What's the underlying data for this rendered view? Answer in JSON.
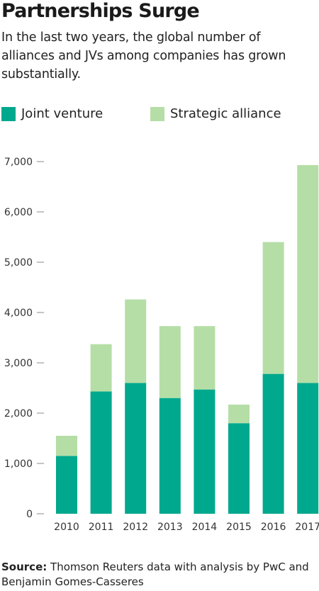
{
  "title": "Partnerships Surge",
  "subtitle": "In the last two years, the global number of alliances and JVs among companies has grown substantially.",
  "legend": {
    "joint_venture": "Joint venture",
    "strategic_alliance": "Strategic alliance"
  },
  "colors": {
    "joint_venture": "#00a88e",
    "strategic_alliance": "#b5dea6"
  },
  "source": {
    "label": "Source:",
    "text": "Thomson Reuters data with analysis by PwC and Benjamin Gomes-Casseres"
  },
  "chart_data": {
    "type": "bar",
    "stacked": true,
    "categories": [
      "2010",
      "2011",
      "2012",
      "2013",
      "2014",
      "2015",
      "2016",
      "2017"
    ],
    "series": [
      {
        "name": "Joint venture",
        "values": [
          1150,
          2430,
          2600,
          2300,
          2470,
          1800,
          2780,
          2600
        ]
      },
      {
        "name": "Strategic alliance",
        "values": [
          400,
          940,
          1660,
          1430,
          1260,
          370,
          2620,
          4330
        ]
      }
    ],
    "ylim": [
      0,
      7000
    ],
    "yticks": [
      0,
      1000,
      2000,
      3000,
      4000,
      5000,
      6000,
      7000
    ],
    "ytick_labels": [
      "0",
      "1,000",
      "2,000",
      "3,000",
      "4,000",
      "5,000",
      "6,000",
      "7,000"
    ],
    "legend_position": "top",
    "grid": false
  }
}
